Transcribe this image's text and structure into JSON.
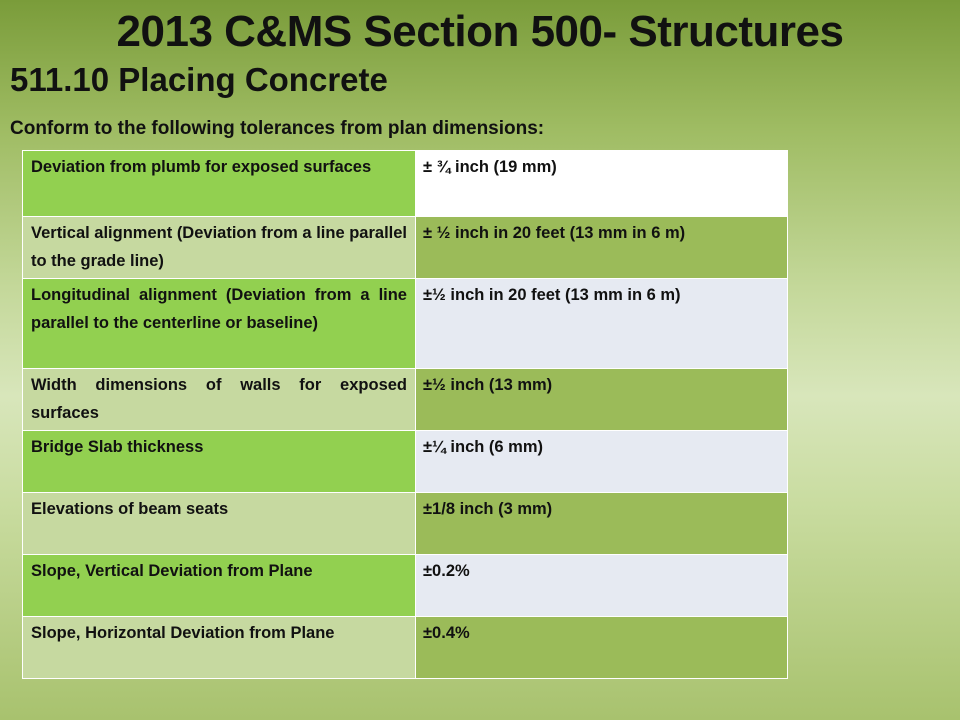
{
  "slide": {
    "title": "2013 C&MS Section 500- Structures",
    "subtitle": "511.10 Placing Concrete",
    "intro": "Conform to the following tolerances from plan dimensions:"
  },
  "table": {
    "rows": [
      {
        "item": "Deviation from plumb for exposed surfaces",
        "tolerance": "± ¾ inch (19 mm)"
      },
      {
        "item": "Vertical alignment (Deviation from a line parallel to the grade line)",
        "tolerance": "± ½ inch in 20 feet (13 mm in 6 m)"
      },
      {
        "item": "Longitudinal alignment (Deviation from a line parallel to the centerline or baseline)",
        "tolerance": "±½ inch in 20 feet (13 mm in 6 m)"
      },
      {
        "item": "Width dimensions of walls for exposed surfaces",
        "tolerance": "±½ inch (13 mm)"
      },
      {
        "item": "Bridge Slab thickness",
        "tolerance": "±¼ inch (6 mm)"
      },
      {
        "item": "Elevations of beam seats",
        "tolerance": "±1/8 inch (3 mm)"
      },
      {
        "item": "Slope, Vertical Deviation from Plane",
        "tolerance": "±0.2%"
      },
      {
        "item": "Slope, Horizontal Deviation from Plane",
        "tolerance": "±0.4%"
      }
    ]
  },
  "colors": {
    "cell_bright_green": "#92d050",
    "cell_pale_green": "#c6d9a0",
    "cell_mid_green": "#9bbb59",
    "cell_white": "#ffffff",
    "cell_light_gray": "#e6eaf2"
  }
}
